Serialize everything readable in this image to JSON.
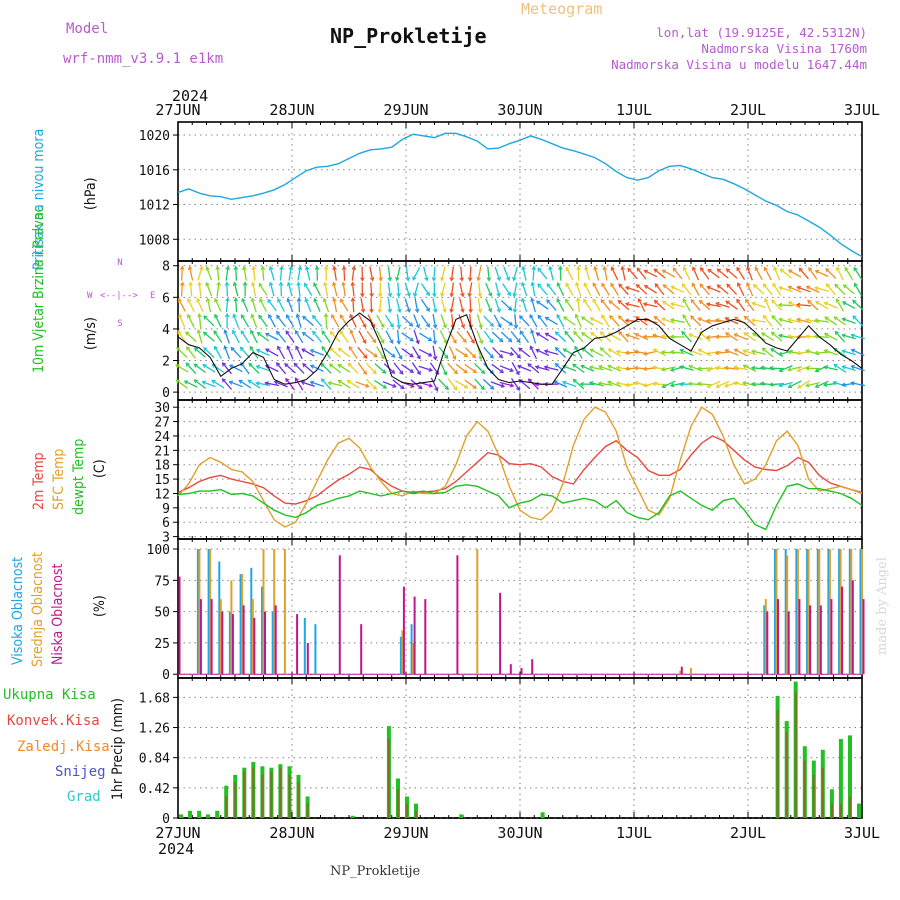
{
  "header": {
    "model_label": "Model",
    "model_name": "wrf-nmm_v3.9.1 e1km",
    "title": "NP_Prokletije",
    "subtitle": "Meteogram",
    "lonlat": "lon,lat (19.9125E, 42.5312N)",
    "elevation": "Nadmorska Visina 1760m",
    "model_elevation": "Nadmorska Visina u modelu 1647.44m",
    "footer_name": "NP_Prokletije",
    "credit": "made by Angel",
    "year": "2024"
  },
  "colors": {
    "pressure": "#1ea7e1",
    "temp2m": "#e8483f",
    "sfc": "#e0a02a",
    "dewpt": "#22c022",
    "high_cloud": "#1ea7e1",
    "mid_cloud": "#e0a02a",
    "low_cloud": "#c0168a",
    "total_precip": "#22c022",
    "conv_precip": "#e8483f",
    "frozen": "#f08a2a",
    "snow": "#5050d0",
    "graupel": "#30c8c8",
    "grid": "#888888",
    "wind_low": "#c020c0",
    "wind_high": "#f0a020"
  },
  "chart_data": [
    {
      "type": "line",
      "panel": "pressure",
      "ylabel_side": "Pritisak na nivou mora",
      "ylabel_unit": "(hPa)",
      "x_ticks": [
        "27JUN",
        "28JUN",
        "29JUN",
        "30JUN",
        "1JUL",
        "2JUL",
        "3JUL"
      ],
      "yticks": [
        1008,
        1012,
        1016,
        1020
      ],
      "ylim": [
        1005.5,
        1021.5
      ],
      "grid": true,
      "series": [
        {
          "values": [
            1013.4,
            1013.8,
            1013.3,
            1013.0,
            1012.9,
            1012.6,
            1012.8,
            1013.0,
            1013.3,
            1013.7,
            1014.3,
            1015.1,
            1015.9,
            1016.3,
            1016.4,
            1016.7,
            1017.3,
            1017.9,
            1018.3,
            1018.4,
            1018.6,
            1019.5,
            1020.1,
            1019.9,
            1019.7,
            1020.2,
            1020.2,
            1019.8,
            1019.3,
            1018.4,
            1018.5,
            1019.0,
            1019.4,
            1019.9,
            1019.5,
            1019.0,
            1018.5,
            1018.2,
            1017.8,
            1017.4,
            1016.7,
            1015.8,
            1015.1,
            1014.8,
            1015.1,
            1015.9,
            1016.4,
            1016.5,
            1016.1,
            1015.6,
            1015.1,
            1014.9,
            1014.4,
            1013.8,
            1013.1,
            1012.4,
            1011.9,
            1011.2,
            1010.8,
            1010.1,
            1009.4,
            1008.5,
            1007.5,
            1006.7,
            1006.0
          ]
        }
      ]
    },
    {
      "type": "wind",
      "panel": "wind",
      "ylabel_side": "10m Vjetar Brzina i Pravac",
      "ylabel_unit": "(m/s)",
      "compass": {
        "n": "N",
        "w": "W",
        "e": "E",
        "s": "S",
        "ne": "<--|-->"
      },
      "yticks": [
        0,
        2,
        4,
        6,
        8
      ],
      "ylim": [
        -0.5,
        8.3
      ],
      "grid": true,
      "series": [
        {
          "name_hidden": true,
          "values": [
            3.5,
            3.0,
            2.8,
            2.2,
            1.0,
            1.5,
            1.8,
            2.5,
            2.2,
            0.8,
            0.5,
            0.6,
            0.8,
            1.4,
            2.5,
            3.8,
            4.5,
            5.0,
            4.5,
            3.0,
            1.0,
            0.6,
            0.5,
            0.6,
            0.7,
            2.8,
            4.6,
            4.9,
            3.0,
            1.5,
            0.8,
            0.6,
            0.7,
            0.6,
            0.5,
            0.5,
            1.5,
            2.5,
            2.8,
            3.4,
            3.5,
            3.8,
            4.2,
            4.6,
            4.6,
            4.2,
            3.4,
            3.0,
            2.6,
            3.8,
            4.2,
            4.4,
            4.6,
            4.4,
            3.8,
            3.1,
            2.8,
            2.6,
            3.4,
            4.2,
            3.5,
            3.0,
            2.4,
            2.0,
            1.5
          ]
        }
      ]
    },
    {
      "type": "line",
      "panel": "temperature",
      "ylabel_side": [
        "2m Temp",
        "SFC Temp",
        "dewpt Temp"
      ],
      "ylabel_unit": "(C)",
      "yticks": [
        3,
        6,
        9,
        12,
        15,
        18,
        21,
        24,
        27,
        30
      ],
      "ylim": [
        2.5,
        31.5
      ],
      "grid": true,
      "series": [
        {
          "key": "t2m",
          "values": [
            12.2,
            13.2,
            14.5,
            15.3,
            15.8,
            15.0,
            14.5,
            14.0,
            13.2,
            11.5,
            10.0,
            9.8,
            10.5,
            11.5,
            13.2,
            14.8,
            16.0,
            17.5,
            17.0,
            15.0,
            13.5,
            12.5,
            12.0,
            12.3,
            12.5,
            13.0,
            14.5,
            16.5,
            18.5,
            20.5,
            20.0,
            18.2,
            18.0,
            18.2,
            17.5,
            15.5,
            14.5,
            14.0,
            17.0,
            19.5,
            21.8,
            23.0,
            21.0,
            19.5,
            16.8,
            15.8,
            15.8,
            17.0,
            20.0,
            22.5,
            24.0,
            23.0,
            21.0,
            19.0,
            17.5,
            17.0,
            16.8,
            17.8,
            19.5,
            18.5,
            15.8,
            14.2,
            13.5,
            12.8,
            12.2
          ]
        },
        {
          "key": "sfc",
          "values": [
            11.5,
            14.0,
            18.0,
            19.5,
            18.5,
            17.0,
            16.5,
            14.5,
            10.5,
            6.5,
            5.0,
            6.0,
            10.0,
            14.5,
            19.0,
            22.5,
            23.5,
            21.5,
            17.5,
            14.5,
            12.0,
            11.5,
            12.5,
            12.0,
            12.0,
            13.5,
            18.0,
            24.0,
            27.0,
            25.0,
            20.0,
            13.5,
            8.5,
            7.0,
            6.5,
            8.5,
            14.0,
            22.0,
            27.5,
            30.0,
            29.0,
            25.0,
            17.5,
            13.0,
            8.5,
            7.5,
            11.0,
            19.0,
            26.0,
            30.0,
            28.5,
            24.0,
            18.0,
            14.0,
            15.0,
            18.0,
            23.0,
            25.0,
            22.0,
            15.0,
            12.5,
            13.0,
            13.5,
            12.8,
            12.0
          ]
        },
        {
          "key": "dewpt",
          "values": [
            11.8,
            12.0,
            12.5,
            12.5,
            12.8,
            11.8,
            12.0,
            11.5,
            10.0,
            8.5,
            7.5,
            7.0,
            8.0,
            9.5,
            10.2,
            11.0,
            11.5,
            12.5,
            12.0,
            11.5,
            12.0,
            12.5,
            12.2,
            12.5,
            12.0,
            12.2,
            13.5,
            13.8,
            13.5,
            12.5,
            11.5,
            9.0,
            10.0,
            10.5,
            11.8,
            11.5,
            10.0,
            10.5,
            11.0,
            10.5,
            9.0,
            10.5,
            8.0,
            7.0,
            6.5,
            8.0,
            11.5,
            12.5,
            11.0,
            9.5,
            8.5,
            10.5,
            11.0,
            8.5,
            5.5,
            4.5,
            9.5,
            13.5,
            14.0,
            13.0,
            13.0,
            12.5,
            12.0,
            11.0,
            9.5
          ]
        }
      ]
    },
    {
      "type": "bar",
      "panel": "cloud",
      "ylabel_side": [
        "Visoka Oblacnost",
        "Srednja Oblacnost",
        "Niska Oblacnost"
      ],
      "ylabel_unit": "(%)",
      "yticks": [
        0,
        25,
        50,
        75,
        100
      ],
      "ylim": [
        -3,
        108
      ],
      "grid": true,
      "series": [
        {
          "key": "high",
          "values": [
            0,
            0,
            100,
            100,
            90,
            50,
            80,
            85,
            70,
            50,
            0,
            0,
            45,
            40,
            0,
            0,
            0,
            0,
            0,
            0,
            0,
            30,
            40,
            0,
            0,
            0,
            0,
            0,
            0,
            0,
            0,
            0,
            0,
            0,
            0,
            0,
            0,
            0,
            0,
            0,
            0,
            0,
            0,
            0,
            0,
            0,
            0,
            0,
            0,
            0,
            0,
            0,
            0,
            0,
            0,
            55,
            100,
            100,
            100,
            100,
            100,
            100,
            100,
            100,
            100
          ]
        },
        {
          "key": "mid",
          "values": [
            0,
            0,
            100,
            100,
            60,
            75,
            80,
            60,
            100,
            100,
            100,
            0,
            0,
            0,
            0,
            0,
            0,
            0,
            0,
            0,
            0,
            35,
            25,
            0,
            0,
            0,
            0,
            0,
            100,
            0,
            0,
            0,
            0,
            0,
            0,
            0,
            0,
            0,
            0,
            0,
            0,
            0,
            0,
            0,
            0,
            0,
            0,
            3,
            5,
            0,
            0,
            0,
            0,
            0,
            0,
            60,
            100,
            95,
            100,
            100,
            100,
            100,
            100,
            100,
            100
          ]
        },
        {
          "key": "low",
          "values": [
            78,
            0,
            60,
            60,
            50,
            48,
            55,
            45,
            50,
            55,
            0,
            48,
            25,
            0,
            0,
            95,
            0,
            40,
            0,
            0,
            0,
            70,
            62,
            60,
            0,
            0,
            95,
            0,
            0,
            0,
            65,
            8,
            5,
            12,
            0,
            0,
            0,
            0,
            0,
            0,
            0,
            0,
            0,
            0,
            0,
            0,
            0,
            6,
            0,
            0,
            0,
            0,
            0,
            0,
            0,
            50,
            60,
            50,
            60,
            55,
            55,
            60,
            70,
            75,
            60
          ]
        }
      ]
    },
    {
      "type": "bar",
      "panel": "precip",
      "legend": [
        "Ukupna Kisa",
        "Konvek.Kisa",
        "Zaledj.Kisa",
        "Snijeg",
        "Grad"
      ],
      "ylabel_unit": "1hr Precip (mm)",
      "yticks": [
        0,
        0.42,
        0.84,
        1.26,
        1.68
      ],
      "ylim": [
        0,
        1.95
      ],
      "grid": true,
      "x_ticks": [
        "27JUN",
        "28JUN",
        "29JUN",
        "30JUN",
        "1JUL",
        "2JUL",
        "3JUL"
      ],
      "series": [
        {
          "key": "total",
          "values": [
            0.05,
            0.1,
            0.1,
            0.05,
            0.1,
            0.45,
            0.6,
            0.7,
            0.78,
            0.72,
            0.7,
            0.75,
            0.72,
            0.6,
            0.3,
            0,
            0,
            0,
            0,
            0.03,
            0,
            0,
            0,
            1.28,
            0.55,
            0.3,
            0.2,
            0,
            0,
            0,
            0,
            0.05,
            0,
            0,
            0,
            0,
            0,
            0,
            0,
            0,
            0.08,
            0,
            0,
            0,
            0,
            0,
            0,
            0,
            0,
            0,
            0,
            0,
            0,
            0,
            0,
            0,
            0,
            0,
            0,
            0,
            0,
            0,
            0,
            0,
            0,
            0,
            1.7,
            1.35,
            1.9,
            1.0,
            0.8,
            0.95,
            0.4,
            1.1,
            1.15,
            0.2
          ]
        },
        {
          "key": "conv",
          "values": [
            0,
            0,
            0,
            0,
            0,
            0.3,
            0.5,
            0.65,
            0.7,
            0.6,
            0.65,
            0.7,
            0.6,
            0.5,
            0.2,
            0,
            0,
            0,
            0,
            0,
            0,
            0,
            0,
            1.1,
            0.4,
            0.2,
            0.1,
            0,
            0,
            0,
            0,
            0,
            0,
            0,
            0,
            0,
            0,
            0,
            0,
            0,
            0,
            0,
            0,
            0,
            0,
            0,
            0,
            0,
            0,
            0,
            0,
            0,
            0,
            0,
            0,
            0,
            0,
            0,
            0,
            0,
            0,
            0,
            0,
            0,
            0,
            0,
            1.5,
            1.2,
            1.75,
            0.8,
            0.6,
            0.7,
            0.2,
            0.2,
            0.3,
            0
          ]
        }
      ]
    }
  ]
}
